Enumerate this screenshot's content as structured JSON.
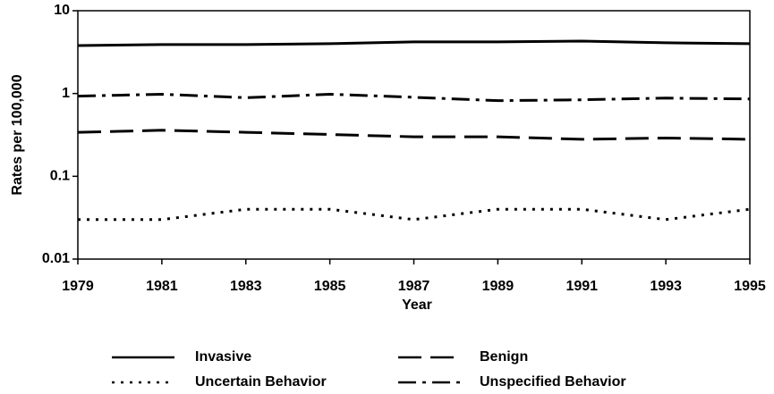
{
  "chart_data": {
    "type": "line",
    "xlabel": "Year",
    "ylabel": "Rates per 100,000",
    "x": [
      1979,
      1981,
      1983,
      1985,
      1987,
      1989,
      1991,
      1993,
      1995
    ],
    "xlim": [
      1979,
      1995
    ],
    "xticks": [
      1979,
      1981,
      1983,
      1985,
      1987,
      1989,
      1991,
      1993,
      1995
    ],
    "ylim": [
      0.01,
      10
    ],
    "yticks": [
      0.01,
      0.1,
      1,
      10
    ],
    "yscale": "log",
    "grid": false,
    "series": [
      {
        "name": "Invasive",
        "color": "#000000",
        "dash": "solid",
        "values": [
          3.8,
          3.9,
          3.9,
          4.0,
          4.2,
          4.2,
          4.3,
          4.1,
          4.0
        ]
      },
      {
        "name": "Benign",
        "color": "#000000",
        "dash": "dashed",
        "values": [
          0.34,
          0.36,
          0.34,
          0.32,
          0.3,
          0.3,
          0.28,
          0.29,
          0.28
        ]
      },
      {
        "name": "Uncertain Behavior",
        "color": "#000000",
        "dash": "dotted",
        "values": [
          0.03,
          0.03,
          0.04,
          0.04,
          0.03,
          0.04,
          0.04,
          0.03,
          0.04
        ]
      },
      {
        "name": "Unspecified Behavior",
        "color": "#000000",
        "dash": "dashdot",
        "values": [
          0.93,
          0.98,
          0.89,
          0.98,
          0.9,
          0.82,
          0.84,
          0.88,
          0.86
        ]
      }
    ]
  }
}
